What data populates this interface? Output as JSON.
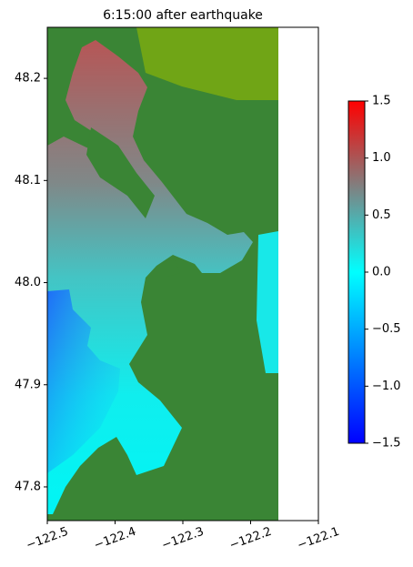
{
  "chart_data": {
    "type": "heatmap",
    "title": "6:15:00 after earthquake",
    "xlim": [
      -122.5,
      -122.1
    ],
    "xticks": [
      {
        "value": -122.5,
        "label": "−122.5"
      },
      {
        "value": -122.4,
        "label": "−122.4"
      },
      {
        "value": -122.3,
        "label": "−122.3"
      },
      {
        "value": -122.2,
        "label": "−122.2"
      },
      {
        "value": -122.1,
        "label": "−122.1"
      }
    ],
    "ylim": [
      47.767,
      48.25
    ],
    "yticks": [
      47.8,
      47.9,
      {
        "value": 48.0,
        "label": "48.0"
      },
      48.1,
      48.2
    ],
    "colorbar": {
      "lim": [
        -1.5,
        1.5
      ],
      "ticks": [
        {
          "value": -1.5,
          "label": "−1.5"
        },
        {
          "value": -1.0,
          "label": "−1.0"
        },
        {
          "value": -0.5,
          "label": "−0.5"
        },
        {
          "value": 0.0,
          "label": "0.0"
        },
        0.5,
        {
          "value": 1.0,
          "label": "1.0"
        },
        1.5
      ]
    }
  }
}
